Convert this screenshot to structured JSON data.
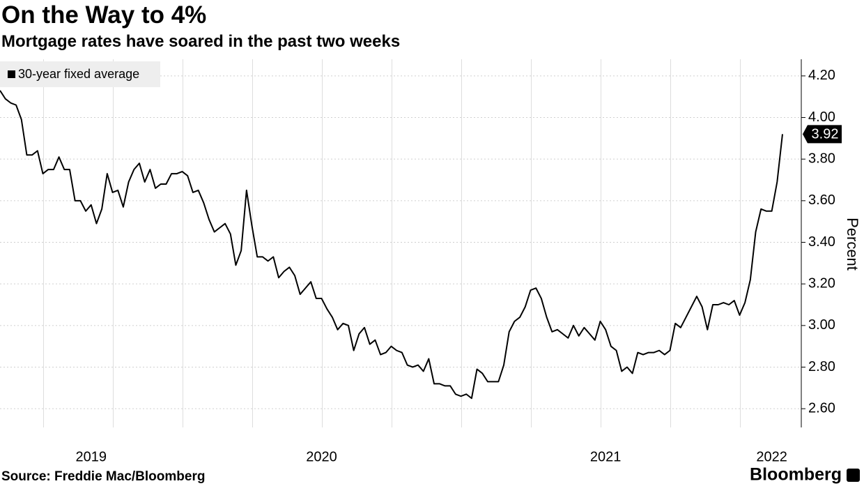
{
  "chart_data": {
    "type": "line",
    "title": "On the Way to 4%",
    "subtitle": "Mortgage rates have soared in the past two weeks",
    "ylabel": "Percent",
    "source": "Source: Freddie Mac/Bloomberg",
    "logo": "Bloomberg",
    "legend": "top-left",
    "grid": true,
    "ylim": [
      2.51,
      4.28
    ],
    "yticks": [
      {
        "value": 2.6,
        "label": "2.60"
      },
      {
        "value": 2.8,
        "label": "2.80"
      },
      {
        "value": 3.0,
        "label": "3.00"
      },
      {
        "value": 3.2,
        "label": "3.20"
      },
      {
        "value": 3.4,
        "label": "3.40"
      },
      {
        "value": 3.6,
        "label": "3.60"
      },
      {
        "value": 3.8,
        "label": "3.80"
      },
      {
        "value": 4.0,
        "label": "4.00"
      },
      {
        "value": 4.2,
        "label": "4.20"
      }
    ],
    "categories": [
      null,
      null,
      null,
      null,
      null,
      null,
      null,
      null,
      null,
      null,
      null,
      null,
      null,
      null,
      null,
      null,
      null,
      "2019",
      null,
      null,
      null,
      null,
      null,
      null,
      null,
      null,
      null,
      null,
      null,
      null,
      null,
      null,
      null,
      null,
      null,
      null,
      null,
      null,
      null,
      null,
      null,
      null,
      null,
      null,
      null,
      null,
      null,
      null,
      null,
      null,
      null,
      null,
      null,
      null,
      null,
      null,
      null,
      null,
      null,
      null,
      "2020",
      null,
      null,
      null,
      null,
      null,
      null,
      null,
      null,
      null,
      null,
      null,
      null,
      null,
      null,
      null,
      null,
      null,
      null,
      null,
      null,
      null,
      null,
      null,
      null,
      null,
      null,
      null,
      null,
      null,
      null,
      null,
      null,
      null,
      null,
      null,
      null,
      null,
      null,
      null,
      null,
      null,
      null,
      null,
      null,
      null,
      null,
      null,
      null,
      null,
      null,
      null,
      null,
      "2021",
      null,
      null,
      null,
      null,
      null,
      null,
      null,
      null,
      null,
      null,
      null,
      null,
      null,
      null,
      null,
      null,
      null,
      null,
      null,
      null,
      null,
      null,
      null,
      null,
      null,
      null,
      null,
      null,
      null,
      null,
      "2022",
      null,
      null
    ],
    "series": [
      {
        "name": "30-year fixed average",
        "color": "#000000",
        "values": [
          4.13,
          4.09,
          4.07,
          4.06,
          3.99,
          3.82,
          3.82,
          3.84,
          3.73,
          3.75,
          3.75,
          3.81,
          3.75,
          3.75,
          3.6,
          3.6,
          3.55,
          3.58,
          3.49,
          3.56,
          3.73,
          3.64,
          3.65,
          3.57,
          3.69,
          3.75,
          3.78,
          3.69,
          3.75,
          3.66,
          3.68,
          3.68,
          3.73,
          3.73,
          3.74,
          3.72,
          3.64,
          3.65,
          3.59,
          3.51,
          3.45,
          3.47,
          3.49,
          3.44,
          3.29,
          3.36,
          3.65,
          3.48,
          3.33,
          3.33,
          3.31,
          3.33,
          3.23,
          3.26,
          3.28,
          3.24,
          3.15,
          3.18,
          3.21,
          3.13,
          3.13,
          3.08,
          3.04,
          2.98,
          3.01,
          3.0,
          2.88,
          2.96,
          2.99,
          2.91,
          2.93,
          2.86,
          2.87,
          2.9,
          2.88,
          2.87,
          2.81,
          2.8,
          2.81,
          2.78,
          2.84,
          2.72,
          2.72,
          2.71,
          2.71,
          2.67,
          2.66,
          2.67,
          2.65,
          2.79,
          2.77,
          2.73,
          2.73,
          2.73,
          2.81,
          2.97,
          3.02,
          3.04,
          3.09,
          3.17,
          3.18,
          3.13,
          3.04,
          2.97,
          2.98,
          2.96,
          2.94,
          3.0,
          2.95,
          2.99,
          2.96,
          2.93,
          3.02,
          2.98,
          2.9,
          2.88,
          2.78,
          2.8,
          2.77,
          2.87,
          2.86,
          2.87,
          2.87,
          2.88,
          2.86,
          2.88,
          3.01,
          2.99,
          3.04,
          3.09,
          3.14,
          3.09,
          2.98,
          3.1,
          3.1,
          3.11,
          3.1,
          3.12,
          3.05,
          3.11,
          3.22,
          3.45,
          3.56,
          3.55,
          3.55,
          3.69,
          3.92
        ]
      }
    ]
  }
}
